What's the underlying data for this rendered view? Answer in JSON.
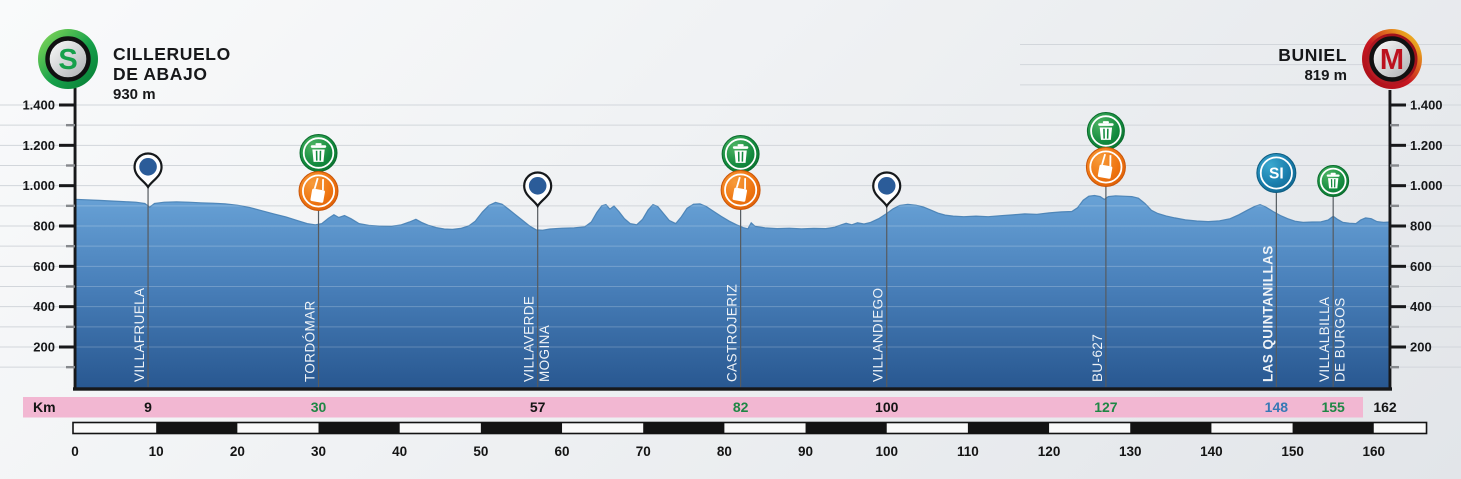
{
  "header": {
    "start": {
      "badge_letter": "S",
      "name_lines": [
        "CILLERUELO",
        "DE ABAJO"
      ],
      "elevation": "930 m"
    },
    "finish": {
      "badge_letter": "M",
      "name_lines": [
        "BUNIEL"
      ],
      "elevation": "819 m"
    }
  },
  "colors": {
    "profile_top": "#6aa4d8",
    "profile_bottom": "#27568f",
    "profile_edge": "#4680b4",
    "axis": "#17181a",
    "minor_tick": "#86898d",
    "gridline": "#d2d6db",
    "km_bar_pink": "#f2b7d2",
    "km_green": "#1e8745",
    "km_blue": "#3679b5",
    "km_black": "#141414",
    "marker_line": "#565b60",
    "label_white": "#eff3f7",
    "icon_green": "#128a3e",
    "icon_orange": "#ee7311",
    "icon_blue": "#1a7fae",
    "pin_blue": "#2b5c99"
  },
  "chart_data": {
    "type": "area",
    "x_unit": "km",
    "y_unit": "m",
    "x_range": [
      0,
      162
    ],
    "y_axis": {
      "major_ticks": [
        200,
        400,
        600,
        800,
        1000,
        1200,
        1400
      ],
      "major_tick_labels": [
        "200",
        "400",
        "600",
        "800",
        "1.000",
        "1.200",
        "1.400"
      ],
      "minor_ticks": [
        100,
        300,
        500,
        700,
        900,
        1100,
        1300
      ],
      "shown_on_both_sides": true
    },
    "grid": "horizontal, every 100 m",
    "start_point": {
      "km": 0,
      "elevation_m": 930,
      "name": "CILLERUELO DE ABAJO"
    },
    "finish_point": {
      "km": 162,
      "elevation_m": 819,
      "name": "BUNIEL"
    },
    "profile": [
      [
        0,
        932
      ],
      [
        1.5,
        930
      ],
      [
        3,
        927
      ],
      [
        4.5,
        924
      ],
      [
        6,
        921
      ],
      [
        7.5,
        918
      ],
      [
        8.6,
        912
      ],
      [
        9.2,
        893
      ],
      [
        9.8,
        912
      ],
      [
        11,
        918
      ],
      [
        12.5,
        920
      ],
      [
        14,
        918
      ],
      [
        15.5,
        915
      ],
      [
        17,
        913
      ],
      [
        18.5,
        910
      ],
      [
        20,
        903
      ],
      [
        21.5,
        892
      ],
      [
        23,
        876
      ],
      [
        24.5,
        860
      ],
      [
        26,
        845
      ],
      [
        27.5,
        826
      ],
      [
        28.6,
        812
      ],
      [
        29.6,
        806
      ],
      [
        30.4,
        812
      ],
      [
        31.2,
        838
      ],
      [
        31.9,
        856
      ],
      [
        32.5,
        842
      ],
      [
        33.2,
        852
      ],
      [
        34,
        836
      ],
      [
        35,
        812
      ],
      [
        36.2,
        803
      ],
      [
        37.5,
        799
      ],
      [
        39,
        798
      ],
      [
        40.2,
        806
      ],
      [
        41.2,
        820
      ],
      [
        42,
        833
      ],
      [
        42.7,
        818
      ],
      [
        43.5,
        804
      ],
      [
        44.5,
        792
      ],
      [
        45.5,
        785
      ],
      [
        46.5,
        783
      ],
      [
        47.5,
        788
      ],
      [
        48.5,
        800
      ],
      [
        49.3,
        824
      ],
      [
        50.2,
        870
      ],
      [
        51,
        902
      ],
      [
        51.8,
        917
      ],
      [
        52.6,
        908
      ],
      [
        53.4,
        884
      ],
      [
        54.2,
        858
      ],
      [
        55,
        832
      ],
      [
        56,
        800
      ],
      [
        56.8,
        781
      ],
      [
        57.6,
        779
      ],
      [
        58.5,
        785
      ],
      [
        60,
        789
      ],
      [
        61.5,
        791
      ],
      [
        62.8,
        796
      ],
      [
        63.6,
        820
      ],
      [
        64.3,
        868
      ],
      [
        64.9,
        900
      ],
      [
        65.4,
        906
      ],
      [
        65.9,
        884
      ],
      [
        66.4,
        899
      ],
      [
        67,
        872
      ],
      [
        67.7,
        836
      ],
      [
        68.4,
        812
      ],
      [
        69.2,
        806
      ],
      [
        69.9,
        832
      ],
      [
        70.6,
        880
      ],
      [
        71.2,
        906
      ],
      [
        71.8,
        896
      ],
      [
        72.5,
        862
      ],
      [
        73.2,
        828
      ],
      [
        74,
        812
      ],
      [
        74.7,
        846
      ],
      [
        75.4,
        888
      ],
      [
        76.2,
        908
      ],
      [
        77,
        910
      ],
      [
        77.8,
        896
      ],
      [
        78.7,
        872
      ],
      [
        79.6,
        848
      ],
      [
        80.6,
        824
      ],
      [
        81.5,
        806
      ],
      [
        82.3,
        792
      ],
      [
        82.9,
        786
      ],
      [
        83.3,
        816
      ],
      [
        83.8,
        798
      ],
      [
        85,
        791
      ],
      [
        86.5,
        787
      ],
      [
        88,
        789
      ],
      [
        89.5,
        786
      ],
      [
        91,
        788
      ],
      [
        92.5,
        787
      ],
      [
        93.6,
        794
      ],
      [
        94.4,
        806
      ],
      [
        95,
        814
      ],
      [
        95.7,
        806
      ],
      [
        96.4,
        816
      ],
      [
        97.2,
        810
      ],
      [
        98,
        818
      ],
      [
        99,
        836
      ],
      [
        100,
        862
      ],
      [
        100.8,
        886
      ],
      [
        101.6,
        902
      ],
      [
        102.6,
        907
      ],
      [
        103.6,
        903
      ],
      [
        104.5,
        894
      ],
      [
        105.4,
        880
      ],
      [
        106.3,
        864
      ],
      [
        107.2,
        854
      ],
      [
        108.2,
        849
      ],
      [
        109.5,
        846
      ],
      [
        111,
        849
      ],
      [
        112.5,
        846
      ],
      [
        114,
        851
      ],
      [
        115.5,
        855
      ],
      [
        117,
        860
      ],
      [
        118.5,
        858
      ],
      [
        120,
        865
      ],
      [
        121.5,
        870
      ],
      [
        122.8,
        872
      ],
      [
        123.5,
        890
      ],
      [
        124.2,
        928
      ],
      [
        124.9,
        948
      ],
      [
        125.6,
        951
      ],
      [
        126.3,
        946
      ],
      [
        126.8,
        932
      ],
      [
        127.3,
        946
      ],
      [
        128.2,
        950
      ],
      [
        129.2,
        948
      ],
      [
        130.2,
        946
      ],
      [
        131,
        938
      ],
      [
        131.8,
        912
      ],
      [
        132.6,
        878
      ],
      [
        133.4,
        862
      ],
      [
        134.4,
        850
      ],
      [
        135.5,
        840
      ],
      [
        136.8,
        830
      ],
      [
        138.2,
        825
      ],
      [
        139.6,
        822
      ],
      [
        141,
        826
      ],
      [
        142.3,
        836
      ],
      [
        143.4,
        856
      ],
      [
        144.4,
        878
      ],
      [
        145.3,
        896
      ],
      [
        146,
        906
      ],
      [
        146.7,
        894
      ],
      [
        147.6,
        872
      ],
      [
        148.5,
        852
      ],
      [
        149.4,
        836
      ],
      [
        150.3,
        824
      ],
      [
        151.3,
        818
      ],
      [
        152.4,
        820
      ],
      [
        153.5,
        821
      ],
      [
        154.4,
        830
      ],
      [
        155,
        848
      ],
      [
        155.5,
        834
      ],
      [
        156.2,
        818
      ],
      [
        157,
        814
      ],
      [
        157.8,
        812
      ],
      [
        158.4,
        830
      ],
      [
        159,
        840
      ],
      [
        159.7,
        836
      ],
      [
        160.4,
        822
      ],
      [
        161.2,
        818
      ],
      [
        162,
        820
      ]
    ],
    "waypoints": [
      {
        "km": 9,
        "label_lines": [
          "VILLAFRUELA"
        ],
        "icons": [
          "checkpoint-pin"
        ],
        "km_color": "black",
        "icon_y": [
          170
        ],
        "bold": false
      },
      {
        "km": 30,
        "label_lines": [
          "TORDÓMAR"
        ],
        "icons": [
          "waste-zone",
          "feed-zone"
        ],
        "km_color": "green",
        "icon_y": [
          153,
          191
        ],
        "bold": false
      },
      {
        "km": 57,
        "label_lines": [
          "VILLAVERDE",
          "MOGINA"
        ],
        "icons": [
          "checkpoint-pin"
        ],
        "km_color": "black",
        "icon_y": [
          189
        ],
        "bold": false
      },
      {
        "km": 82,
        "label_lines": [
          "CASTROJERIZ"
        ],
        "icons": [
          "waste-zone",
          "feed-zone"
        ],
        "km_color": "green",
        "icon_y": [
          154,
          190
        ],
        "bold": false
      },
      {
        "km": 100,
        "label_lines": [
          "VILLANDIEGO"
        ],
        "icons": [
          "checkpoint-pin"
        ],
        "km_color": "black",
        "icon_y": [
          189
        ],
        "bold": false
      },
      {
        "km": 127,
        "label_lines": [
          "BU-627"
        ],
        "icons": [
          "waste-zone",
          "feed-zone"
        ],
        "km_color": "green",
        "icon_y": [
          131,
          167
        ],
        "bold": false
      },
      {
        "km": 148,
        "label_lines": [
          "LAS QUINTANILLAS"
        ],
        "icons": [
          "sprint-si"
        ],
        "km_color": "blue",
        "icon_y": [
          173
        ],
        "bold": true
      },
      {
        "km": 155,
        "label_lines": [
          "VILLALBILLA",
          "DE BURGOS"
        ],
        "icons": [
          "waste-zone-small"
        ],
        "km_color": "green",
        "icon_y": [
          181
        ],
        "bold": false
      }
    ],
    "sprint_icon_text": "SI",
    "km_bar": {
      "label": "Km",
      "final_km": 162,
      "final_km_color": "black"
    },
    "scale_bar": {
      "labels": [
        0,
        10,
        20,
        30,
        40,
        50,
        60,
        70,
        80,
        90,
        100,
        110,
        120,
        130,
        140,
        150,
        160
      ],
      "step_km": 10,
      "bar_end_km": 166.5
    }
  }
}
